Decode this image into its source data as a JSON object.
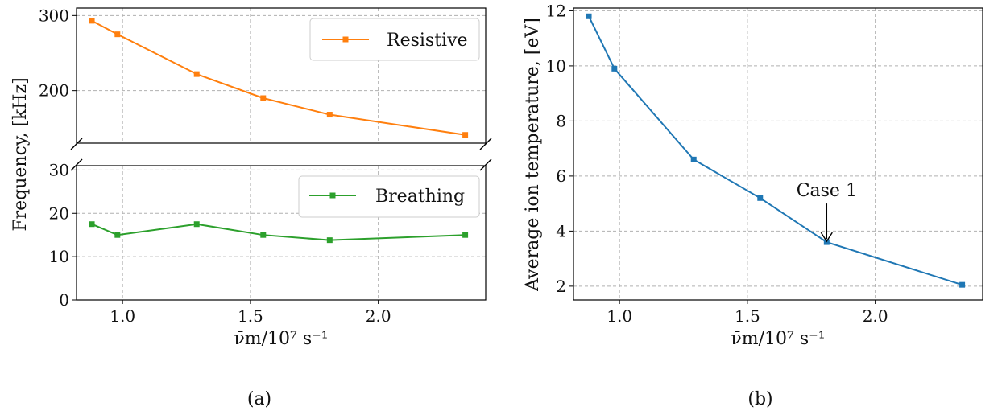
{
  "chart_data": [
    {
      "id": "a",
      "type": "line",
      "caption": "(a)",
      "xlabel": "ν̄m/10⁷ s⁻¹",
      "ylabel": "Frequency, [kHz]",
      "xlim": [
        0.82,
        2.42
      ],
      "x_ticks": [
        1.0,
        1.5,
        2.0
      ],
      "grid": true,
      "broken_axis": true,
      "panels": [
        {
          "id": "top",
          "ylim": [
            130,
            310
          ],
          "y_ticks": [
            200,
            300
          ],
          "legend_placement": "top-right",
          "series": [
            {
              "name": "Resistive",
              "color": "#ff7f0e",
              "x": [
                0.88,
                0.98,
                1.29,
                1.55,
                1.81,
                2.34
              ],
              "y": [
                293,
                275,
                222,
                190,
                168,
                141
              ]
            }
          ]
        },
        {
          "id": "bottom",
          "ylim": [
            0,
            31
          ],
          "y_ticks": [
            0,
            10,
            20,
            30
          ],
          "legend_placement": "top-right",
          "series": [
            {
              "name": "Breathing",
              "color": "#2ca02c",
              "x": [
                0.88,
                0.98,
                1.29,
                1.55,
                1.81,
                2.34
              ],
              "y": [
                17.5,
                15.0,
                17.5,
                15.0,
                13.8,
                15.0
              ]
            }
          ]
        }
      ]
    },
    {
      "id": "b",
      "type": "line",
      "caption": "(b)",
      "xlabel": "ν̄m/10⁷ s⁻¹",
      "ylabel": "Average ion temperature, [eV]",
      "xlim": [
        0.82,
        2.42
      ],
      "ylim": [
        1.5,
        12.1
      ],
      "x_ticks": [
        1.0,
        1.5,
        2.0
      ],
      "y_ticks": [
        2,
        4,
        6,
        8,
        10,
        12
      ],
      "grid": true,
      "series": [
        {
          "name": "",
          "color": "#1f77b4",
          "x": [
            0.88,
            0.98,
            1.29,
            1.55,
            1.81,
            2.34
          ],
          "y": [
            11.8,
            9.9,
            6.6,
            5.2,
            3.6,
            2.05
          ]
        }
      ],
      "annotation": {
        "text": "Case 1",
        "x": 1.81,
        "y": 3.6
      }
    }
  ]
}
